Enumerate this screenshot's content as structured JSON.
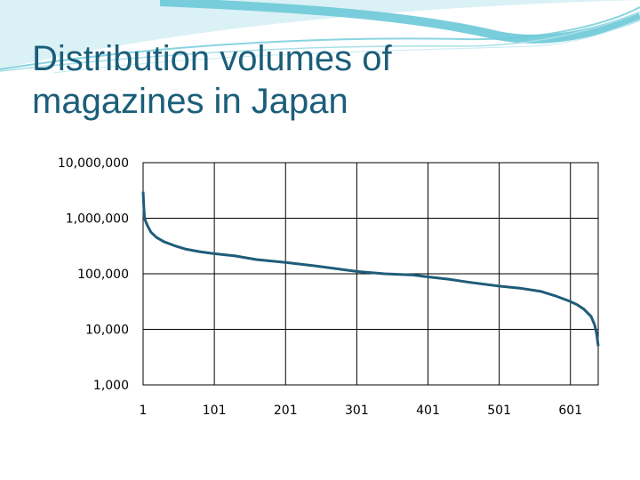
{
  "slide": {
    "title": "Distribution volumes of\nmagazines in Japan",
    "colors": {
      "title": "#1b5e7a",
      "series": "#1f5c7a",
      "banner": "#6cc9d8"
    }
  },
  "chart_data": {
    "type": "line",
    "title": "",
    "xlabel": "",
    "ylabel": "",
    "y_scale": "log",
    "ylim": [
      1000,
      10000000
    ],
    "xlim": [
      1,
      640
    ],
    "grid": true,
    "x_tick_labels": [
      "1",
      "101",
      "201",
      "301",
      "401",
      "501",
      "601"
    ],
    "y_tick_labels": [
      "1,000",
      "10,000",
      "100,000",
      "1,000,000",
      "10,000,000"
    ],
    "series": [
      {
        "x": [
          1,
          2,
          3,
          5,
          8,
          12,
          20,
          30,
          45,
          60,
          80,
          101,
          130,
          160,
          201,
          240,
          280,
          301,
          340,
          380,
          401,
          430,
          460,
          501,
          530,
          560,
          580,
          600,
          610,
          620,
          630,
          635,
          638,
          640
        ],
        "y": [
          3000000,
          1600000,
          1000000,
          850000,
          700000,
          560000,
          450000,
          380000,
          320000,
          280000,
          250000,
          230000,
          210000,
          180000,
          160000,
          140000,
          120000,
          110000,
          100000,
          95000,
          88000,
          80000,
          70000,
          60000,
          55000,
          48000,
          40000,
          32000,
          28000,
          23000,
          17000,
          12000,
          8000,
          5000
        ]
      }
    ]
  }
}
